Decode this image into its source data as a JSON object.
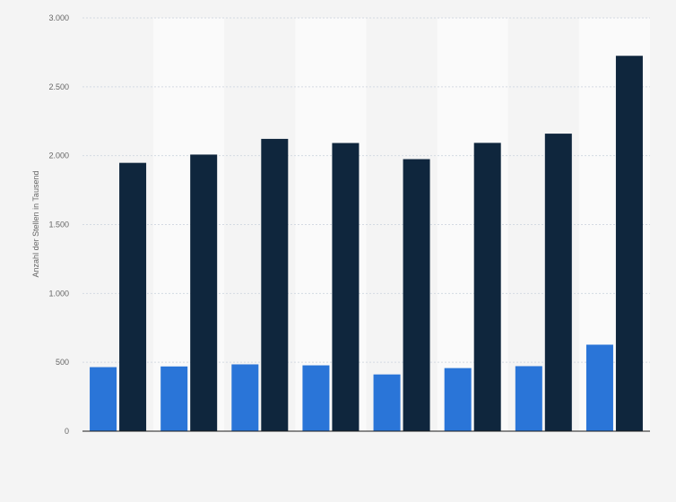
{
  "chart_data": {
    "type": "bar",
    "title": "",
    "xlabel": "",
    "ylabel": "Anzahl der Stellen in Tausend",
    "categories": [
      "",
      "",
      "",
      "",
      "",
      "",
      "",
      ""
    ],
    "series": [
      {
        "values": [
          465,
          470,
          485,
          478,
          412,
          458,
          472,
          628
        ]
      },
      {
        "values": [
          1948,
          2008,
          2122,
          2092,
          1975,
          2093,
          2160,
          2725
        ]
      }
    ],
    "ylim": [
      0,
      3000
    ],
    "yticks": [
      0,
      500,
      1000,
      1500,
      2000,
      2500,
      3000
    ],
    "ytick_labels": [
      "0",
      "500",
      "1.000",
      "1.500",
      "2.000",
      "2.500",
      "3.000"
    ],
    "grid": true,
    "legend": "none",
    "colors": {
      "series": [
        "#2a75d8",
        "#0f263d"
      ],
      "band_light": "#fafafa",
      "band_dark": "#f4f4f4",
      "grid": "#d4dae2",
      "axis": "#1a1a1a"
    }
  }
}
